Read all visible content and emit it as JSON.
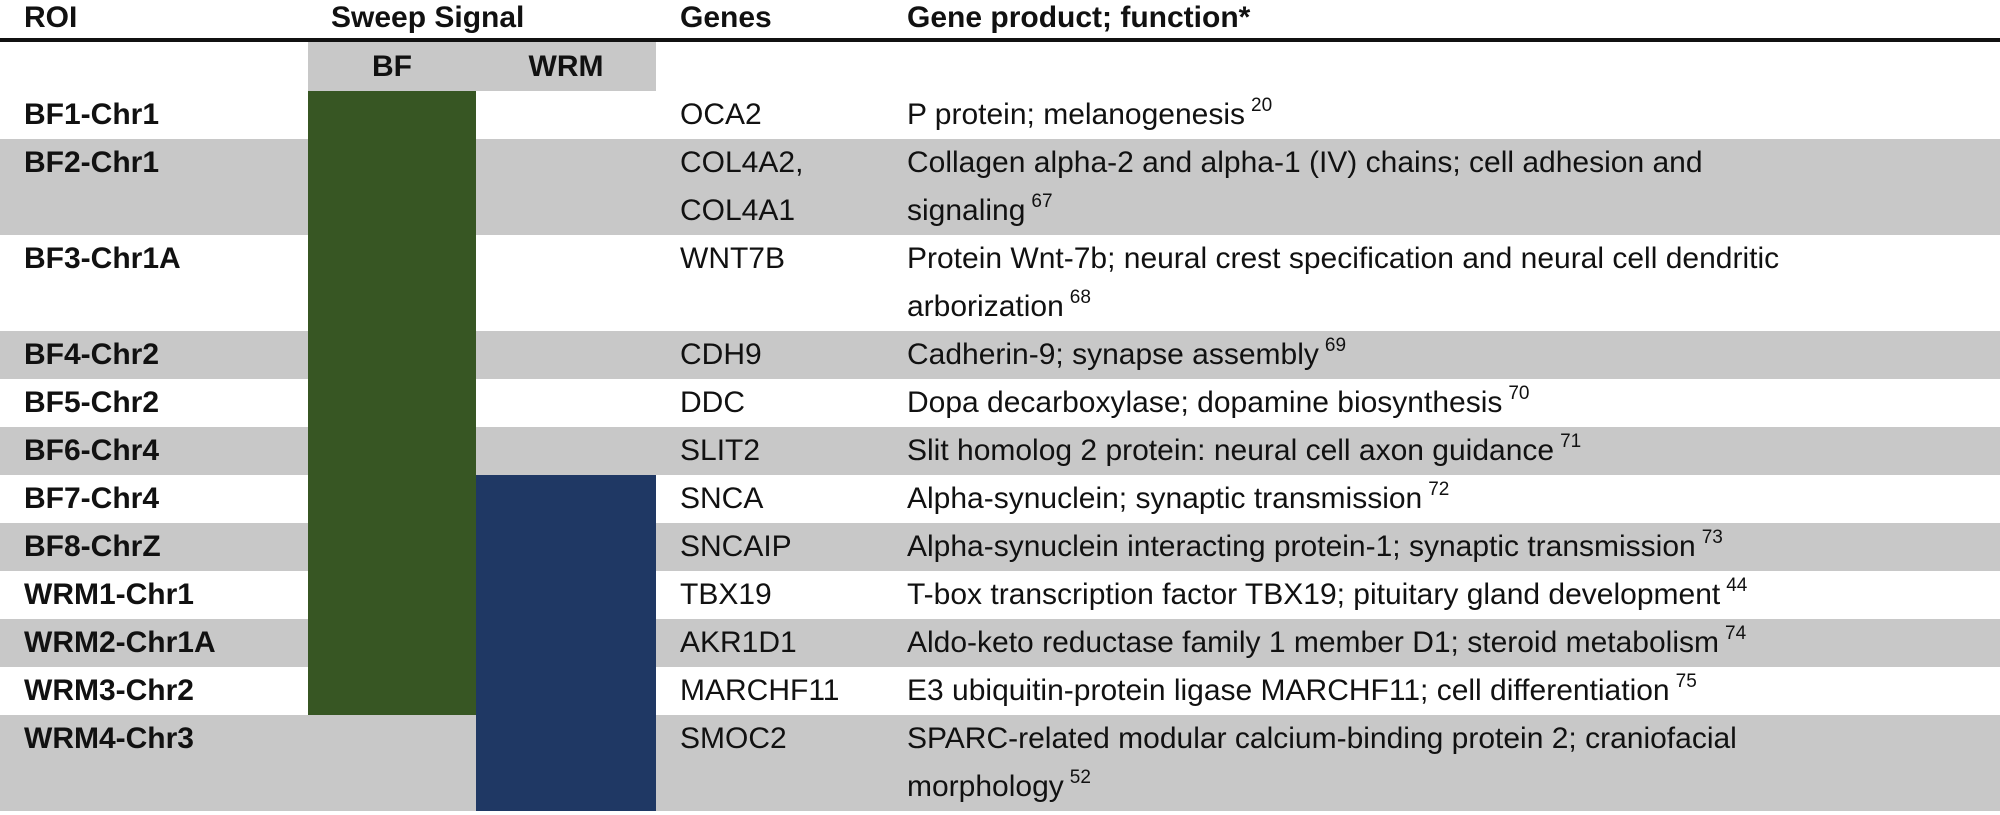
{
  "headers": {
    "roi": "ROI",
    "sweep": "Sweep Signal",
    "genes": "Genes",
    "function": "Gene product; function*"
  },
  "subheaders": {
    "bf": "BF",
    "wrm": "WRM"
  },
  "colors": {
    "bf_signal": "#375623",
    "wrm_signal": "#1f3864",
    "shade": "#c8c8c8"
  },
  "rows": [
    {
      "roi": "BF1-Chr1",
      "bf": true,
      "wrm": false,
      "genes": [
        "OCA2"
      ],
      "func": [
        "P protein; melanogenesis"
      ],
      "ref": "20"
    },
    {
      "roi": "BF2-Chr1",
      "bf": true,
      "wrm": false,
      "genes": [
        "COL4A2,",
        "COL4A1"
      ],
      "func": [
        "Collagen alpha-2 and alpha-1 (IV) chains; cell adhesion and",
        "signaling"
      ],
      "ref": "67"
    },
    {
      "roi": "BF3-Chr1A",
      "bf": true,
      "wrm": false,
      "genes": [
        "WNT7B"
      ],
      "func": [
        "Protein Wnt-7b; neural crest specification and neural cell dendritic",
        "arborization"
      ],
      "ref": "68"
    },
    {
      "roi": "BF4-Chr2",
      "bf": true,
      "wrm": false,
      "genes": [
        "CDH9"
      ],
      "func": [
        "Cadherin-9; synapse assembly"
      ],
      "ref": "69"
    },
    {
      "roi": "BF5-Chr2",
      "bf": true,
      "wrm": false,
      "genes": [
        "DDC"
      ],
      "func": [
        "Dopa decarboxylase; dopamine biosynthesis"
      ],
      "ref": "70"
    },
    {
      "roi": "BF6-Chr4",
      "bf": true,
      "wrm": false,
      "genes": [
        "SLIT2"
      ],
      "func": [
        "Slit homolog 2 protein: neural cell axon guidance"
      ],
      "ref": "71"
    },
    {
      "roi": "BF7-Chr4",
      "bf": true,
      "wrm": true,
      "genes": [
        "SNCA"
      ],
      "func": [
        "Alpha-synuclein; synaptic transmission"
      ],
      "ref": "72"
    },
    {
      "roi": "BF8-ChrZ",
      "bf": true,
      "wrm": true,
      "genes": [
        "SNCAIP"
      ],
      "func": [
        "Alpha-synuclein interacting protein-1; synaptic transmission"
      ],
      "ref": "73"
    },
    {
      "roi": "WRM1-Chr1",
      "bf": true,
      "wrm": true,
      "genes": [
        "TBX19"
      ],
      "func": [
        "T-box transcription factor TBX19; pituitary gland development"
      ],
      "ref": "44"
    },
    {
      "roi": "WRM2-Chr1A",
      "bf": true,
      "wrm": true,
      "genes": [
        "AKR1D1"
      ],
      "func": [
        "Aldo-keto reductase family 1 member D1; steroid metabolism"
      ],
      "ref": "74"
    },
    {
      "roi": "WRM3-Chr2",
      "bf": true,
      "wrm": true,
      "genes": [
        "MARCHF11"
      ],
      "func": [
        "E3 ubiquitin-protein ligase MARCHF11; cell differentiation"
      ],
      "ref": "75"
    },
    {
      "roi": "WRM4-Chr3",
      "bf": false,
      "wrm": true,
      "genes": [
        "SMOC2"
      ],
      "func": [
        "SPARC-related modular calcium-binding protein 2; craniofacial",
        "morphology"
      ],
      "ref": "52"
    }
  ]
}
